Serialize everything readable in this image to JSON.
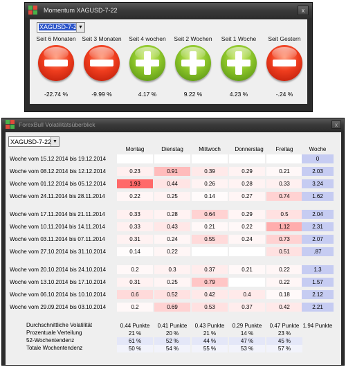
{
  "momentum": {
    "title": "Momentum XAGUSD-7-22",
    "close": "x",
    "symbol": "XAGUSD-7-22",
    "periods": [
      {
        "label": "Seit 6 Monaten",
        "signal": "minus",
        "value": "-22.74 %"
      },
      {
        "label": "Seit 3 Monaten",
        "signal": "minus",
        "value": "-9.99 %"
      },
      {
        "label": "Seit 4 wochen",
        "signal": "plus",
        "value": "4.17 %"
      },
      {
        "label": "Seit 2 Wochen",
        "signal": "plus",
        "value": "9.22 %"
      },
      {
        "label": "Seit 1 Woche",
        "signal": "plus",
        "value": "4.23 %"
      },
      {
        "label": "Seit Gestern",
        "signal": "minus",
        "value": "-.24 %"
      }
    ]
  },
  "volatility": {
    "title": "ForexBull Volatilitätsüberblick",
    "close": "x",
    "symbol": "XAGUSD-7-22",
    "headers": {
      "mon": "Montag",
      "tue": "Dienstag",
      "wed": "Mittwoch",
      "thu": "Donnerstag",
      "fri": "Freitag",
      "week": "Woche"
    },
    "colors": {
      "week_bg": "#c6ccf2",
      "heat_max": "#e85a5a",
      "heat_min": "#ffffff"
    },
    "rows": [
      {
        "label": "Woche vom 15.12.2014 bis 19.12.2014",
        "days": [
          "",
          "",
          "",
          "",
          ""
        ],
        "heat": [
          0,
          0,
          0,
          0,
          0
        ],
        "week": "0"
      },
      {
        "label": "Woche vom 08.12.2014 bis 12.12.2014",
        "days": [
          "0.23",
          "0.91",
          "0.39",
          "0.29",
          "0.21"
        ],
        "heat": [
          0.1,
          0.45,
          0.15,
          0.08,
          0.05
        ],
        "week": "2.03"
      },
      {
        "label": "Woche vom 01.12.2014 bis 05.12.2014",
        "days": [
          "1.93",
          "0.44",
          "0.26",
          "0.28",
          "0.33"
        ],
        "heat": [
          1.0,
          0.18,
          0.08,
          0.08,
          0.1
        ],
        "week": "3.24"
      },
      {
        "label": "Woche vom 24.11.2014 bis 28.11.2014",
        "days": [
          "0.22",
          "0.25",
          "0.14",
          "0.27",
          "0.74"
        ],
        "heat": [
          0.06,
          0.08,
          0.03,
          0.07,
          0.3
        ],
        "week": "1.62"
      },
      {
        "label": "Woche vom 17.11.2014 bis 21.11.2014",
        "days": [
          "0.33",
          "0.28",
          "0.64",
          "0.29",
          "0.5"
        ],
        "heat": [
          0.1,
          0.08,
          0.3,
          0.07,
          0.2
        ],
        "week": "2.04"
      },
      {
        "label": "Woche vom 10.11.2014 bis 14.11.2014",
        "days": [
          "0.33",
          "0.43",
          "0.21",
          "0.22",
          "1.12"
        ],
        "heat": [
          0.1,
          0.16,
          0.05,
          0.05,
          0.55
        ],
        "week": "2.31"
      },
      {
        "label": "Woche vom 03.11.2014 bis 07.11.2014",
        "days": [
          "0.31",
          "0.24",
          "0.55",
          "0.24",
          "0.73"
        ],
        "heat": [
          0.09,
          0.06,
          0.25,
          0.06,
          0.3
        ],
        "week": "2.07"
      },
      {
        "label": "Woche vom 27.10.2014 bis 31.10.2014",
        "days": [
          "0.14",
          "0.22",
          "",
          "",
          "0.51"
        ],
        "heat": [
          0.02,
          0.06,
          0,
          0,
          0.2
        ],
        "week": ".87"
      },
      {
        "label": "Woche vom 20.10.2014 bis 24.10.2014",
        "days": [
          "0.2",
          "0.3",
          "0.37",
          "0.21",
          "0.22"
        ],
        "heat": [
          0.05,
          0.09,
          0.13,
          0.05,
          0.06
        ],
        "week": "1.3"
      },
      {
        "label": "Woche vom 13.10.2014 bis 17.10.2014",
        "days": [
          "0.31",
          "0.25",
          "0.79",
          "",
          "0.22"
        ],
        "heat": [
          0.09,
          0.07,
          0.38,
          0,
          0.06
        ],
        "week": "1.57"
      },
      {
        "label": "Woche vom 06.10.2014 bis 10.10.2014",
        "days": [
          "0.6",
          "0.52",
          "0.42",
          "0.4",
          "0.18"
        ],
        "heat": [
          0.25,
          0.2,
          0.15,
          0.14,
          0.04
        ],
        "week": "2.12"
      },
      {
        "label": "Woche vom 29.09.2014 bis 03.10.2014",
        "days": [
          "0.2",
          "0.69",
          "0.53",
          "0.37",
          "0.42"
        ],
        "heat": [
          0.05,
          0.3,
          0.2,
          0.12,
          0.15
        ],
        "week": "2.21"
      }
    ],
    "summary": [
      {
        "label": "Durchschnittliche Volatilität",
        "vals": [
          "0.44 Punkte",
          "0.41 Punkte",
          "0.43 Punkte",
          "0.29 Punkte",
          "0.47 Punkte",
          "1.94 Punkte"
        ]
      },
      {
        "label": "Prozentuale Verteilung",
        "vals": [
          "21 %",
          "20 %",
          "21 %",
          "14 %",
          "23 %",
          ""
        ]
      },
      {
        "label": "52-Wochentendenz",
        "vals": [
          "61 %",
          "52 %",
          "44 %",
          "47 %",
          "45 %",
          ""
        ]
      },
      {
        "label": "Totale Wochentendenz",
        "vals": [
          "50 %",
          "54 %",
          "55 %",
          "53 %",
          "57 %",
          ""
        ]
      }
    ]
  }
}
